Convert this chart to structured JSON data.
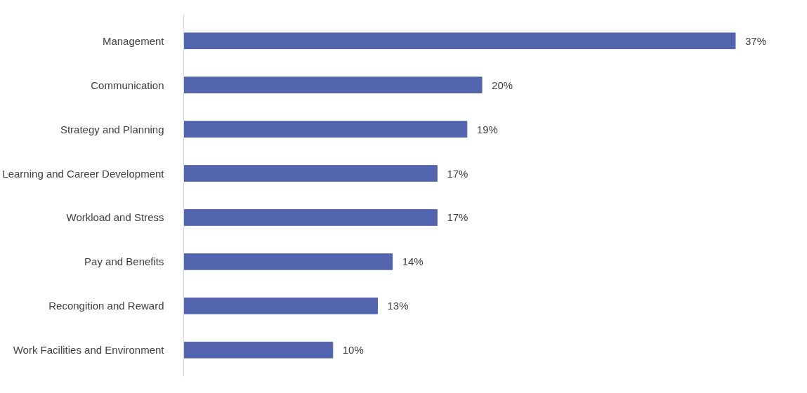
{
  "chart_data": {
    "type": "bar",
    "orientation": "horizontal",
    "categories": [
      "Management",
      "Communication",
      "Strategy and Planning",
      "Learning and Career Development",
      "Workload and Stress",
      "Pay and Benefits",
      "Recongition and Reward",
      "Work Facilities and Environment"
    ],
    "values": [
      37,
      20,
      19,
      17,
      17,
      14,
      13,
      10
    ],
    "value_labels": [
      "37%",
      "20%",
      "19%",
      "17%",
      "17%",
      "14%",
      "13%",
      "10%"
    ],
    "color": "#5265ae",
    "grid": false
  }
}
